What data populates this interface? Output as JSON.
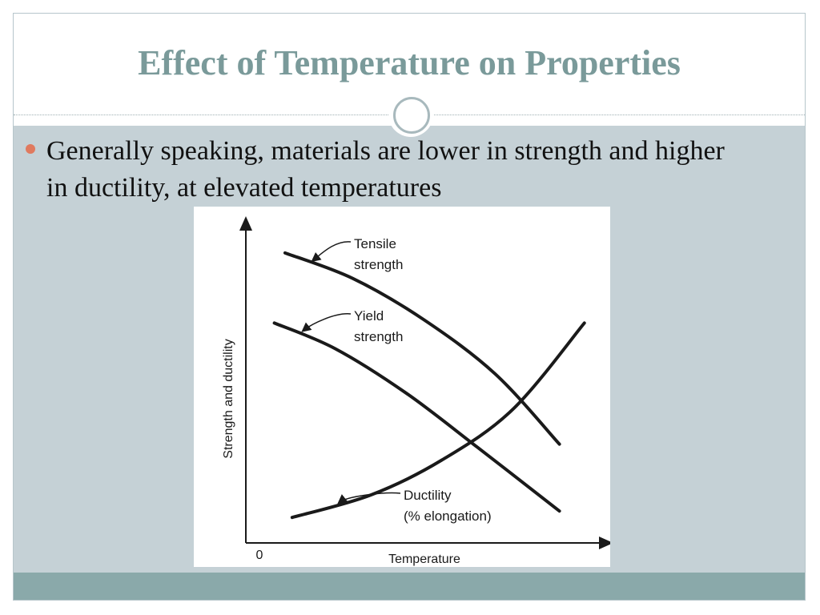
{
  "slide": {
    "title": "Effect of Temperature on Properties",
    "bullet": "Generally speaking, materials are lower in strength and higher in ductility, at elevated temperatures"
  },
  "colors": {
    "title": "#7a9a9a",
    "content_bg": "#c5d1d6",
    "footer": "#8aa9aa",
    "bullet": "#e07a5f"
  },
  "chart_data": {
    "type": "line",
    "xlabel": "Temperature",
    "ylabel": "Strength and ductility",
    "origin_label": "0",
    "x_ticks": [],
    "y_ticks": [],
    "grid": false,
    "series": [
      {
        "name": "Tensile strength",
        "label_lines": [
          "Tensile",
          "strength"
        ],
        "trend": "decreasing",
        "x": [
          0.11,
          0.3,
          0.5,
          0.7,
          0.88
        ],
        "y": [
          0.91,
          0.83,
          0.7,
          0.53,
          0.31
        ]
      },
      {
        "name": "Yield strength",
        "label_lines": [
          "Yield",
          "strength"
        ],
        "trend": "decreasing",
        "x": [
          0.08,
          0.25,
          0.45,
          0.65,
          0.88
        ],
        "y": [
          0.69,
          0.61,
          0.47,
          0.3,
          0.1
        ]
      },
      {
        "name": "Ductility (% elongation)",
        "label_lines": [
          "Ductility",
          "(% elongation)"
        ],
        "trend": "increasing",
        "x": [
          0.13,
          0.35,
          0.55,
          0.75,
          0.95
        ],
        "y": [
          0.08,
          0.15,
          0.26,
          0.42,
          0.69
        ]
      }
    ]
  }
}
